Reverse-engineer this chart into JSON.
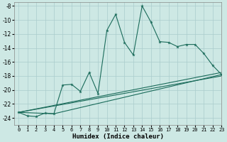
{
  "xlabel": "Humidex (Indice chaleur)",
  "xlim": [
    -0.5,
    23
  ],
  "ylim": [
    -25.0,
    -7.5
  ],
  "yticks": [
    -8,
    -10,
    -12,
    -14,
    -16,
    -18,
    -20,
    -22,
    -24
  ],
  "xticks": [
    0,
    1,
    2,
    3,
    4,
    5,
    6,
    7,
    8,
    9,
    10,
    11,
    12,
    13,
    14,
    15,
    16,
    17,
    18,
    19,
    20,
    21,
    22,
    23
  ],
  "background_color": "#cde8e4",
  "grid_color": "#aacccc",
  "line_color": "#1a6b5a",
  "line1_x": [
    0,
    1,
    2,
    3,
    4,
    5,
    6,
    7,
    8,
    9,
    10,
    11,
    12,
    13,
    14,
    15,
    16,
    17,
    18,
    19,
    20,
    21,
    22,
    23
  ],
  "line1_y": [
    -23.2,
    -23.7,
    -23.8,
    -23.3,
    -23.4,
    -19.3,
    -19.2,
    -20.2,
    -17.5,
    -20.5,
    -11.5,
    -9.2,
    -13.2,
    -15.0,
    -8.0,
    -10.3,
    -13.1,
    -13.2,
    -13.8,
    -13.5,
    -13.5,
    -14.8,
    -16.5,
    -17.8
  ],
  "line2_x": [
    0,
    23
  ],
  "line2_y": [
    -23.2,
    -18.0
  ],
  "line3_x": [
    0,
    23
  ],
  "line3_y": [
    -23.2,
    -17.5
  ],
  "line4_x": [
    0,
    4,
    23
  ],
  "line4_y": [
    -23.2,
    -23.4,
    -17.8
  ]
}
